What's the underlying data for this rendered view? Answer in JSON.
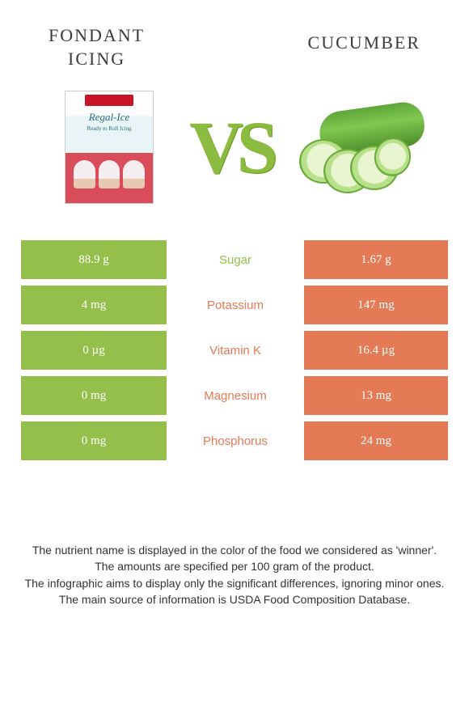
{
  "header": {
    "left_title_line1": "Fondant",
    "left_title_line2": "icing",
    "right_title": "Cucumber",
    "vs_label": "VS"
  },
  "colors": {
    "green": "#93bf4a",
    "orange": "#e47a56",
    "vs_color": "#8bbb3f",
    "background": "#ffffff"
  },
  "left_image": {
    "brand_text": "Regal-Ice",
    "sub_text": "Ready to Roll Icing"
  },
  "comparison": {
    "type": "table",
    "left_col_color": "#93bf4a",
    "right_col_color": "#e47a56",
    "rows": [
      {
        "left": "88.9 g",
        "label": "Sugar",
        "right": "1.67 g",
        "winner": "left"
      },
      {
        "left": "4 mg",
        "label": "Potassium",
        "right": "147 mg",
        "winner": "right"
      },
      {
        "left": "0 µg",
        "label": "Vitamin K",
        "right": "16.4 µg",
        "winner": "right"
      },
      {
        "left": "0 mg",
        "label": "Magnesium",
        "right": "13 mg",
        "winner": "right"
      },
      {
        "left": "0 mg",
        "label": "Phosphorus",
        "right": "24 mg",
        "winner": "right"
      }
    ]
  },
  "footer": {
    "line1": "The nutrient name is displayed in the color of the food we considered as 'winner'.",
    "line2": "The amounts are specified per 100 gram of the product.",
    "line3": "The infographic aims to display only the significant differences, ignoring minor ones.",
    "line4": "The main source of information is USDA Food Composition Database."
  },
  "typography": {
    "title_fontsize": 22,
    "vs_fontsize": 92,
    "cell_fontsize": 15,
    "footer_fontsize": 14
  }
}
